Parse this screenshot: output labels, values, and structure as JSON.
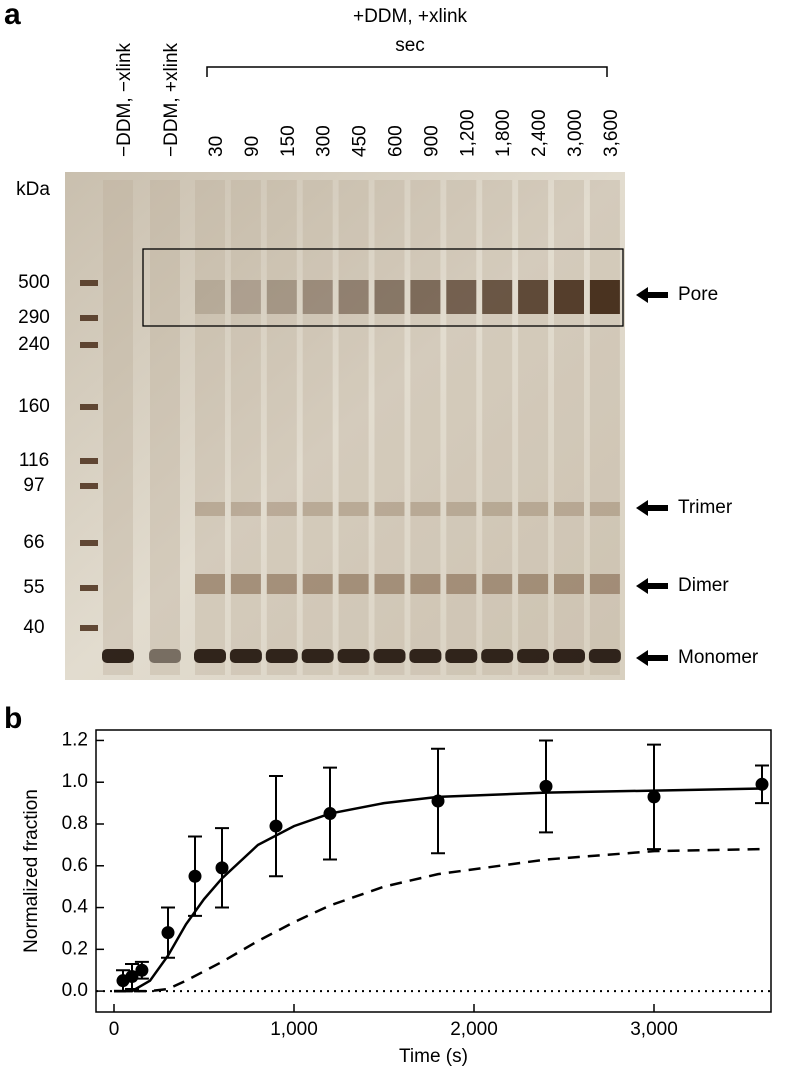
{
  "panel_labels": [
    "a",
    "b"
  ],
  "gel": {
    "header": "+DDM, +xlink",
    "unit": "sec",
    "lanes": [
      "−DDM, −xlink",
      "−DDM, +xlink",
      "30",
      "90",
      "150",
      "300",
      "450",
      "600",
      "900",
      "1,200",
      "1,800",
      "2,400",
      "3,000",
      "3,600"
    ],
    "kda_label": "kDa",
    "markers": [
      "500",
      "290",
      "240",
      "160",
      "116",
      "97",
      "66",
      "55",
      "40"
    ],
    "bands": [
      "Pore",
      "Trimer",
      "Dimer",
      "Monomer"
    ]
  },
  "chart_data": {
    "type": "scatter",
    "x_label": "Time (s)",
    "y_label": "Normalized fraction",
    "xlim": [
      -100,
      3650
    ],
    "ylim": [
      -0.1,
      1.25
    ],
    "xticks": [
      0,
      {
        "value": 1000,
        "label": "1,000"
      },
      {
        "value": 2000,
        "label": "2,000"
      },
      {
        "value": 3000,
        "label": "3,000"
      }
    ],
    "yticks": [
      {
        "value": 0,
        "label": "0.0"
      },
      0.2,
      0.4,
      0.6,
      0.8,
      {
        "value": 1,
        "label": "1.0"
      },
      1.2
    ],
    "reference_line": {
      "value": 0,
      "style": "dotted"
    },
    "series": [
      {
        "type": "scatter",
        "color": "#000000",
        "x": [
          50,
          100,
          155,
          300,
          450,
          600,
          900,
          1200,
          1800,
          2400,
          3000,
          3600
        ],
        "values": [
          0.05,
          0.07,
          0.1,
          0.28,
          0.55,
          0.59,
          0.79,
          0.85,
          0.91,
          0.98,
          0.93,
          0.99
        ],
        "errors": [
          0.05,
          0.06,
          0.04,
          0.12,
          0.19,
          0.19,
          0.24,
          0.22,
          0.25,
          0.22,
          0.25,
          0.09
        ]
      },
      {
        "type": "line",
        "style": "solid",
        "color": "#000000",
        "x": [
          0,
          100,
          200,
          300,
          400,
          500,
          600,
          800,
          1000,
          1200,
          1500,
          1800,
          2400,
          3000,
          3600
        ],
        "values": [
          0,
          0,
          0.05,
          0.17,
          0.32,
          0.44,
          0.54,
          0.7,
          0.79,
          0.85,
          0.9,
          0.93,
          0.95,
          0.96,
          0.97
        ]
      },
      {
        "type": "line",
        "style": "dashed",
        "color": "#000000",
        "x": [
          0,
          200,
          300,
          400,
          600,
          800,
          1000,
          1200,
          1500,
          1800,
          2400,
          3000,
          3600
        ],
        "values": [
          0,
          0,
          0.01,
          0.05,
          0.14,
          0.24,
          0.33,
          0.41,
          0.5,
          0.56,
          0.63,
          0.67,
          0.68
        ]
      }
    ]
  }
}
